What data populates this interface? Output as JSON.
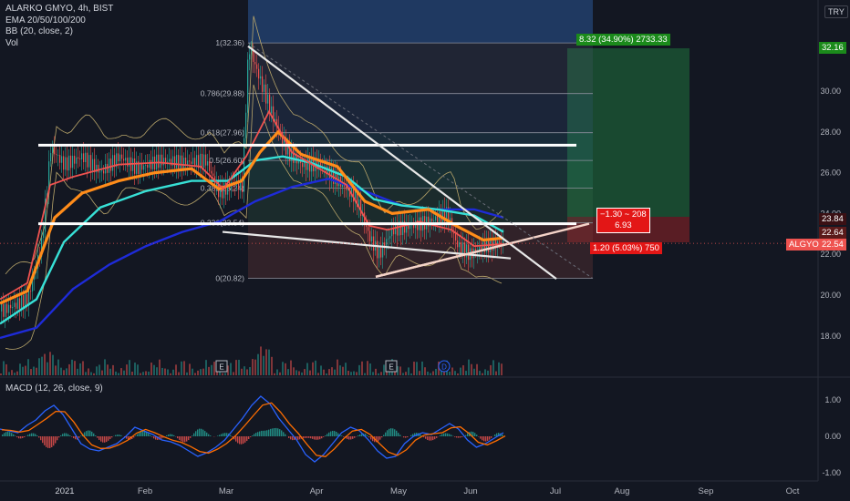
{
  "legend": {
    "title": "ALARKO GMYO, 4h, BIST",
    "ema": "EMA 20/50/100/200",
    "bb": "BB (20, close, 2)",
    "vol": "Vol"
  },
  "currency_label": "TRY",
  "price_axis_ticks": [
    "30.00",
    "28.00",
    "26.00",
    "24.00",
    "22.00",
    "20.00",
    "18.00"
  ],
  "price_axis_badges": {
    "target": "32.16",
    "stop": "23.84",
    "p1": "22.64",
    "symbol": "ALGYO",
    "last": "22.54"
  },
  "fib_labels": [
    "1(32.36)",
    "0.786(29.88)",
    "0.618(27.96)",
    "0.5(26.60)",
    "0.382(25.24)",
    "0.236(23.54)",
    "0(20.82)"
  ],
  "position_labels": {
    "profit": "8.32 (34.90%) 2733.33",
    "risk_line1": "−1.30 ~ 208",
    "risk_line2": "6.93",
    "loss": "1.20 (5.03%) 750"
  },
  "event_markers": [
    "E",
    "E",
    "D"
  ],
  "macd": {
    "label": "MACD (12, 26, close, 9)",
    "ticks": [
      "1.00",
      "0.00",
      "-1.00"
    ]
  },
  "time_axis": [
    "2021",
    "Feb",
    "Mar",
    "Apr",
    "May",
    "Jun",
    "Jul",
    "Aug",
    "Sep",
    "Oct"
  ],
  "colors": {
    "background": "#131722",
    "bull": "#26a69a",
    "bear": "#ef5350",
    "ema20": "#ef5350",
    "ema50": "#ff8c1a",
    "ema100": "#37e0d6",
    "ema200": "#1e2bd8",
    "target_badge": "#1b8a1b",
    "stop_badge": "#e31616"
  }
}
